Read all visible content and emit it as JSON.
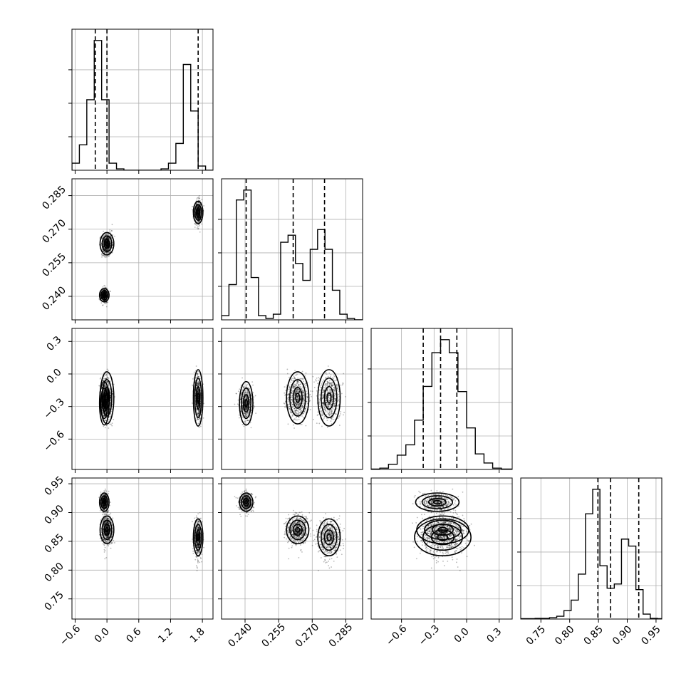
{
  "chart_data": {
    "type": "corner",
    "dims": [
      {
        "range": [
          -0.66,
          2.0
        ],
        "ticks": [
          -0.6,
          0.0,
          0.6,
          1.2,
          1.8
        ],
        "tick_labels": [
          "−0.6",
          "0.0",
          "0.6",
          "1.2",
          "1.8"
        ],
        "hist": {
          "edges": [
            -0.66,
            -0.52,
            -0.38,
            -0.24,
            -0.1,
            0.04,
            0.18,
            0.32,
            0.46,
            0.6,
            0.74,
            0.88,
            1.02,
            1.16,
            1.3,
            1.44,
            1.58,
            1.72,
            1.86,
            2.0
          ],
          "counts": [
            0.05,
            0.18,
            0.5,
            0.92,
            0.5,
            0.05,
            0.01,
            0,
            0,
            0,
            0,
            0,
            0.01,
            0.05,
            0.19,
            0.75,
            0.42,
            0.03,
            0
          ]
        },
        "quantiles": [
          -0.22,
          0.0,
          1.72
        ]
      },
      {
        "range": [
          0.2295,
          0.2925
        ],
        "ticks": [
          0.24,
          0.255,
          0.27,
          0.285
        ],
        "tick_labels": [
          "0.240",
          "0.255",
          "0.270",
          "0.285"
        ],
        "hist": {
          "edges": [
            0.2295,
            0.2328,
            0.2361,
            0.2394,
            0.2427,
            0.246,
            0.2493,
            0.2526,
            0.2559,
            0.2592,
            0.2625,
            0.2658,
            0.2691,
            0.2724,
            0.2757,
            0.279,
            0.2823,
            0.2856,
            0.2889,
            0.2925
          ],
          "counts": [
            0.03,
            0.25,
            0.85,
            0.92,
            0.3,
            0.03,
            0.01,
            0.04,
            0.55,
            0.6,
            0.4,
            0.28,
            0.5,
            0.64,
            0.5,
            0.21,
            0.04,
            0.01,
            0
          ]
        },
        "quantiles": [
          0.2405,
          0.2615,
          0.2755
        ]
      },
      {
        "range": [
          -0.88,
          0.42
        ],
        "ticks": [
          -0.6,
          -0.3,
          0.0,
          0.3
        ],
        "tick_labels": [
          "−0.6",
          "−0.3",
          "0.0",
          "0.3"
        ],
        "hist": {
          "edges": [
            -0.88,
            -0.8,
            -0.72,
            -0.64,
            -0.56,
            -0.48,
            -0.4,
            -0.32,
            -0.24,
            -0.16,
            -0.08,
            0.0,
            0.08,
            0.16,
            0.24,
            0.32,
            0.42
          ],
          "counts": [
            0.003,
            0.01,
            0.04,
            0.11,
            0.19,
            0.38,
            0.64,
            0.9,
            1.0,
            0.9,
            0.6,
            0.32,
            0.12,
            0.05,
            0.01,
            0.003
          ]
        },
        "quantiles": [
          -0.4,
          -0.24,
          -0.09
        ]
      },
      {
        "range": [
          0.715,
          0.96
        ],
        "ticks": [
          0.75,
          0.8,
          0.85,
          0.9,
          0.95
        ],
        "tick_labels": [
          "0.75",
          "0.80",
          "0.85",
          "0.90",
          "0.95"
        ],
        "hist": {
          "edges": [
            0.715,
            0.7275,
            0.74,
            0.7525,
            0.765,
            0.7775,
            0.79,
            0.8025,
            0.815,
            0.8275,
            0.84,
            0.8525,
            0.865,
            0.8775,
            0.89,
            0.9025,
            0.915,
            0.9275,
            0.94,
            0.9525,
            0.965
          ],
          "counts": [
            0.003,
            0.003,
            0.005,
            0.005,
            0.01,
            0.02,
            0.06,
            0.135,
            0.32,
            0.75,
            0.925,
            0.38,
            0.22,
            0.25,
            0.57,
            0.52,
            0.21,
            0.035,
            0.005,
            0.003
          ]
        },
        "quantiles": [
          0.849,
          0.871,
          0.92
        ]
      }
    ],
    "clusters": [
      {
        "mean": [
          0.0,
          0.2635,
          -0.22,
          0.87
        ],
        "sd": [
          0.065,
          0.0025,
          0.12,
          0.012
        ]
      },
      {
        "mean": [
          -0.05,
          0.2405,
          -0.27,
          0.918
        ],
        "sd": [
          0.045,
          0.0015,
          0.1,
          0.008
        ]
      },
      {
        "mean": [
          1.72,
          0.2775,
          -0.22,
          0.857
        ],
        "sd": [
          0.045,
          0.0025,
          0.13,
          0.016
        ]
      }
    ]
  }
}
